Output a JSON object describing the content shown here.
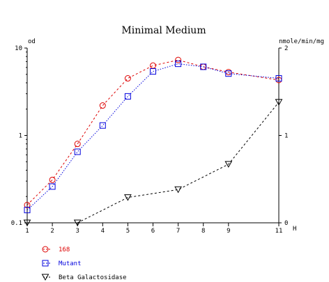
{
  "chart_data": {
    "type": "line",
    "title": "Minimal Medium",
    "left_axis": {
      "label": "od",
      "scale": "log",
      "range": [
        0.1,
        10
      ],
      "ticks": [
        {
          "value": 0.1,
          "label": "0.1"
        },
        {
          "value": 1,
          "label": "1"
        },
        {
          "value": 10,
          "label": "10"
        }
      ]
    },
    "right_axis": {
      "label": "nmole/min/mg",
      "scale": "linear",
      "range": [
        0,
        2
      ],
      "ticks": [
        {
          "value": 0,
          "label": "0"
        },
        {
          "value": 1,
          "label": "1"
        },
        {
          "value": 2,
          "label": "2"
        }
      ]
    },
    "x_axis": {
      "label": "H",
      "range": [
        1,
        11
      ],
      "ticks": [
        {
          "value": 1,
          "label": "1"
        },
        {
          "value": 2,
          "label": "2"
        },
        {
          "value": 3,
          "label": "3"
        },
        {
          "value": 4,
          "label": "4"
        },
        {
          "value": 5,
          "label": "5"
        },
        {
          "value": 6,
          "label": "6"
        },
        {
          "value": 7,
          "label": "7"
        },
        {
          "value": 8,
          "label": "8"
        },
        {
          "value": 9,
          "label": "9"
        },
        {
          "value": 11,
          "label": "11"
        }
      ]
    },
    "grid": false,
    "legend_placement": "bottom-left",
    "series": [
      {
        "name": "168",
        "axis": "left",
        "color": "#dd0000",
        "marker": "circle",
        "line_style": "dashed",
        "x": [
          1,
          2,
          3,
          4,
          5,
          6,
          7,
          8,
          9,
          11
        ],
        "y": [
          0.16,
          0.31,
          0.8,
          2.2,
          4.5,
          6.3,
          7.3,
          6.1,
          5.3,
          4.3
        ]
      },
      {
        "name": "Mutant",
        "axis": "left",
        "color": "#0000dd",
        "marker": "square",
        "line_style": "dotted",
        "x": [
          1,
          2,
          3,
          4,
          5,
          6,
          7,
          8,
          9,
          11
        ],
        "y": [
          0.14,
          0.26,
          0.65,
          1.3,
          2.8,
          5.4,
          6.6,
          6.1,
          5.1,
          4.5
        ]
      },
      {
        "name": "Beta Galactosidase",
        "axis": "right",
        "color": "#000000",
        "marker": "triangle-down",
        "line_style": "dashed",
        "x": [
          1,
          3,
          5,
          7,
          9,
          11
        ],
        "y": [
          0.0,
          0.0,
          0.29,
          0.38,
          0.67,
          1.38
        ]
      }
    ]
  }
}
